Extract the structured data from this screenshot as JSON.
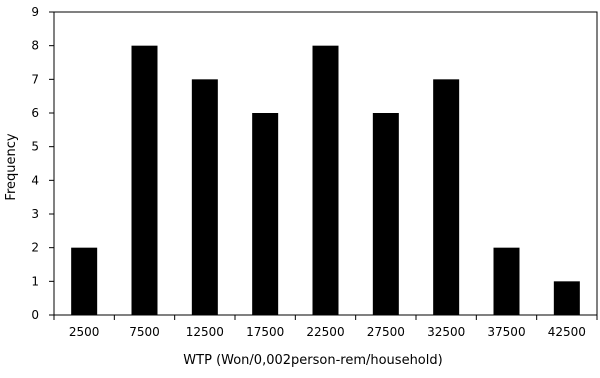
{
  "chart_data": {
    "type": "bar",
    "categories": [
      "2500",
      "7500",
      "12500",
      "17500",
      "22500",
      "27500",
      "32500",
      "37500",
      "42500"
    ],
    "values": [
      2,
      8,
      7,
      6,
      8,
      6,
      7,
      2,
      1
    ],
    "xlabel": "WTP (Won/0,002person-rem/household)",
    "ylabel": "Frequency",
    "ylim": [
      0,
      9
    ],
    "yticks": [
      "0",
      "1",
      "2",
      "3",
      "4",
      "5",
      "6",
      "7",
      "8",
      "9"
    ],
    "grid": false,
    "legend": "none",
    "bar_color": "#000000"
  }
}
